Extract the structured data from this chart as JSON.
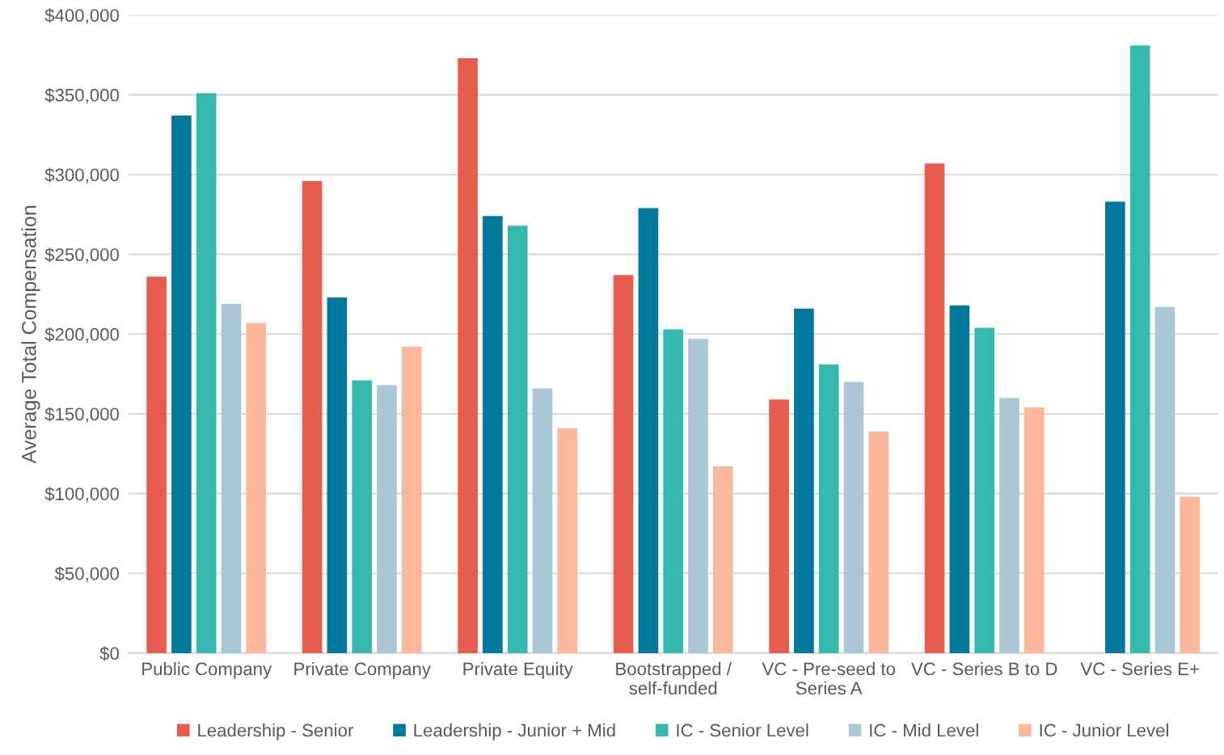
{
  "chart_data": {
    "type": "bar",
    "ylabel": "Average Total Compensation",
    "categories": [
      "Public Company",
      "Private Company",
      "Private Equity",
      "Bootstrapped /\nself-funded",
      "VC - Pre-seed to\nSeries A",
      "VC - Series B to D",
      "VC - Series E+"
    ],
    "series": [
      {
        "name": "Leadership - Senior",
        "color": "#e85c4f",
        "values": [
          236000,
          296000,
          373000,
          237000,
          159000,
          307000,
          null
        ]
      },
      {
        "name": "Leadership - Junior + Mid",
        "color": "#00789c",
        "values": [
          337000,
          223000,
          274000,
          279000,
          216000,
          218000,
          283000
        ]
      },
      {
        "name": "IC - Senior Level",
        "color": "#35b8ad",
        "values": [
          351000,
          171000,
          268000,
          203000,
          181000,
          204000,
          381000
        ]
      },
      {
        "name": "IC - Mid Level",
        "color": "#aac7d5",
        "values": [
          219000,
          168000,
          166000,
          197000,
          170000,
          160000,
          217000
        ]
      },
      {
        "name": "IC - Junior Level",
        "color": "#fdb89c",
        "values": [
          207000,
          192000,
          141000,
          117000,
          139000,
          154000,
          98000
        ]
      }
    ],
    "ylim": [
      0,
      400000
    ],
    "yticks": [
      {
        "value": 0,
        "label": "$0"
      },
      {
        "value": 50000,
        "label": "$50,000"
      },
      {
        "value": 100000,
        "label": "$100,000"
      },
      {
        "value": 150000,
        "label": "$150,000"
      },
      {
        "value": 200000,
        "label": "$200,000"
      },
      {
        "value": 250000,
        "label": "$250,000"
      },
      {
        "value": 300000,
        "label": "$300,000"
      },
      {
        "value": 350000,
        "label": "$350,000"
      },
      {
        "value": 400000,
        "label": "$400,000"
      }
    ],
    "grid": "y",
    "legend": "bottom"
  }
}
